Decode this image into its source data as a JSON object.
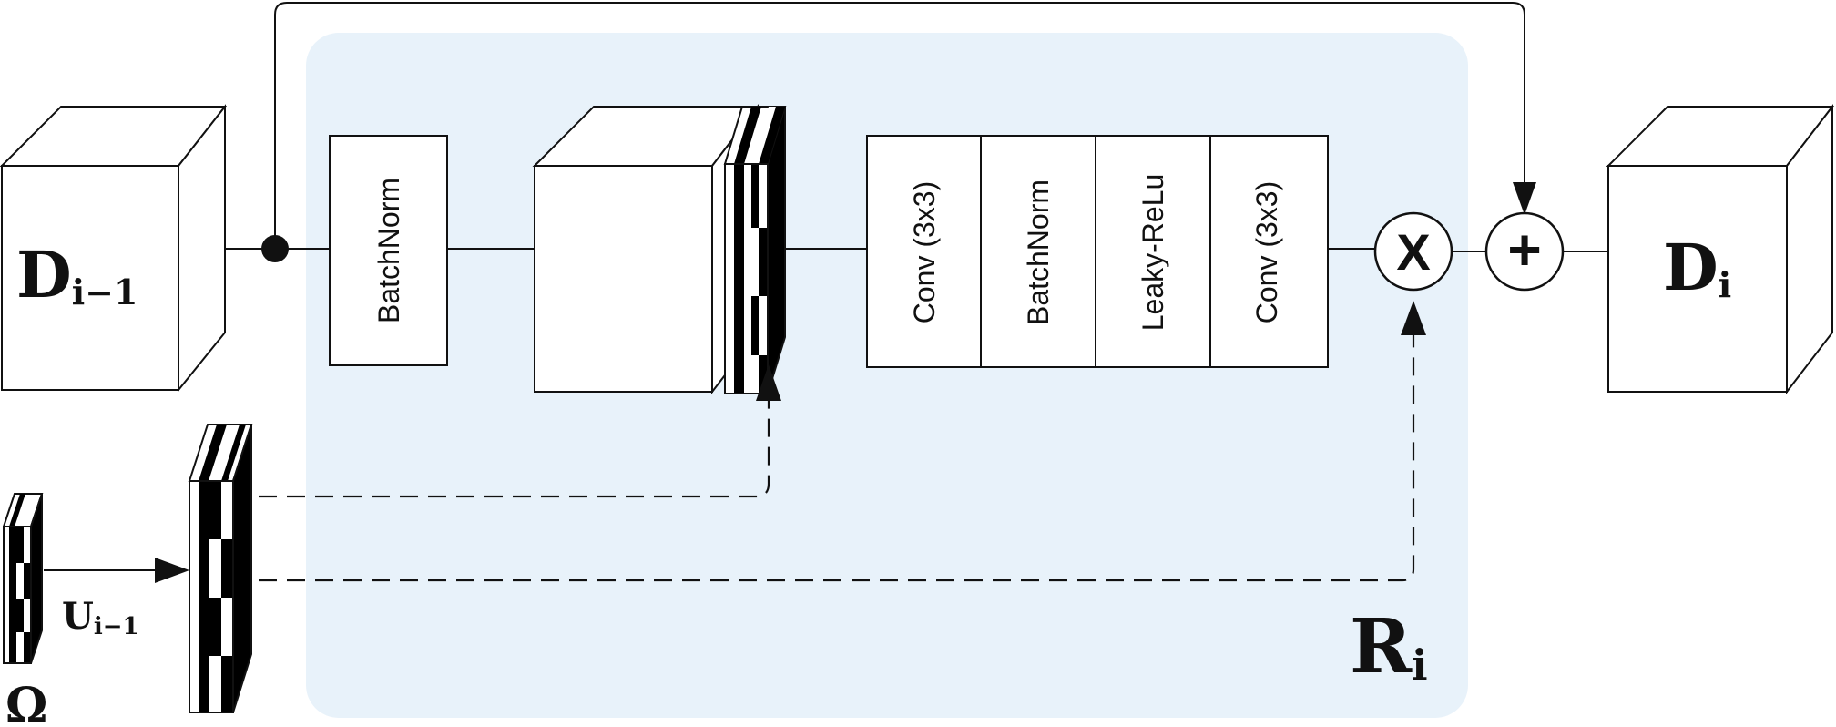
{
  "labels": {
    "input": "D",
    "input_sub": "i−1",
    "output": "D",
    "output_sub": "i",
    "block": "R",
    "block_sub": "i",
    "upsample": "U",
    "upsample_sub": "i−1",
    "omega": "Ω",
    "multiply": "X",
    "add": "+"
  },
  "layers": {
    "batchnorm_first": "BatchNorm",
    "stack": [
      "Conv (3x3)",
      "BatchNorm",
      "Leaky-ReLu",
      "Conv (3x3)"
    ]
  },
  "colors": {
    "block_fill": "#e8f2fa",
    "stroke": "#111111",
    "mask_dark": "#000000",
    "mask_light": "#ffffff"
  }
}
